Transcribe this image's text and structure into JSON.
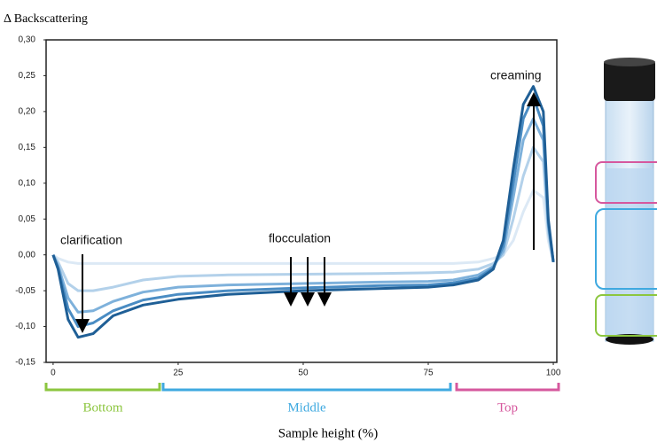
{
  "chart_data": {
    "type": "line",
    "y_label": "Δ Backscattering",
    "x_label": "Sample height (%)",
    "annotations": [
      "clarification",
      "flocculation",
      "creaming"
    ],
    "regions": [
      {
        "label": "Bottom",
        "color": "#8cc63f"
      },
      {
        "label": "Middle",
        "color": "#3fa9e0"
      },
      {
        "label": "Top",
        "color": "#d6589e"
      }
    ],
    "x": [
      0,
      1,
      3,
      5,
      8,
      12,
      18,
      25,
      35,
      50,
      65,
      75,
      80,
      85,
      88,
      90,
      92,
      94,
      96,
      98,
      99,
      100
    ],
    "series": [
      {
        "color": "#dce9f5",
        "values": [
          0,
          -0.005,
          -0.01,
          -0.012,
          -0.012,
          -0.012,
          -0.012,
          -0.012,
          -0.012,
          -0.012,
          -0.012,
          -0.012,
          -0.012,
          -0.01,
          -0.005,
          0,
          0.02,
          0.06,
          0.09,
          0.08,
          0.02,
          -0.01
        ]
      },
      {
        "color": "#b3d1ea",
        "values": [
          0,
          -0.01,
          -0.04,
          -0.05,
          -0.05,
          -0.045,
          -0.035,
          -0.03,
          -0.028,
          -0.027,
          -0.026,
          -0.025,
          -0.024,
          -0.02,
          -0.012,
          0,
          0.05,
          0.11,
          0.15,
          0.13,
          0.03,
          -0.01
        ]
      },
      {
        "color": "#7eb1db",
        "values": [
          0,
          -0.015,
          -0.06,
          -0.08,
          -0.078,
          -0.065,
          -0.052,
          -0.045,
          -0.042,
          -0.04,
          -0.038,
          -0.037,
          -0.035,
          -0.028,
          -0.016,
          0.005,
          0.08,
          0.16,
          0.19,
          0.16,
          0.04,
          -0.01
        ]
      },
      {
        "color": "#4a8cc3",
        "values": [
          0,
          -0.018,
          -0.075,
          -0.1,
          -0.095,
          -0.078,
          -0.063,
          -0.055,
          -0.05,
          -0.046,
          -0.043,
          -0.042,
          -0.039,
          -0.032,
          -0.018,
          0.012,
          0.1,
          0.19,
          0.22,
          0.18,
          0.045,
          -0.01
        ]
      },
      {
        "color": "#1f5f96",
        "values": [
          0,
          -0.02,
          -0.09,
          -0.115,
          -0.11,
          -0.085,
          -0.07,
          -0.062,
          -0.055,
          -0.05,
          -0.047,
          -0.045,
          -0.042,
          -0.035,
          -0.02,
          0.02,
          0.12,
          0.21,
          0.235,
          0.2,
          0.05,
          -0.01
        ]
      }
    ],
    "xlim": [
      -1.4,
      100.7
    ],
    "ylim": [
      -0.15,
      0.3
    ],
    "xticks": [
      0,
      25,
      50,
      75,
      100
    ],
    "yticks": [
      {
        "value": -0.15,
        "label": "-0,15"
      },
      {
        "value": -0.1,
        "label": "-0,10"
      },
      {
        "value": -0.05,
        "label": "-0,05"
      },
      {
        "value": 0,
        "label": "0,00"
      },
      {
        "value": 0.05,
        "label": "0,05"
      },
      {
        "value": 0.1,
        "label": "0,10"
      },
      {
        "value": 0.15,
        "label": "0,15"
      },
      {
        "value": 0.2,
        "label": "0,20"
      },
      {
        "value": 0.25,
        "label": "0,25"
      },
      {
        "value": 0.3,
        "label": "0,30"
      }
    ],
    "grid": false
  }
}
